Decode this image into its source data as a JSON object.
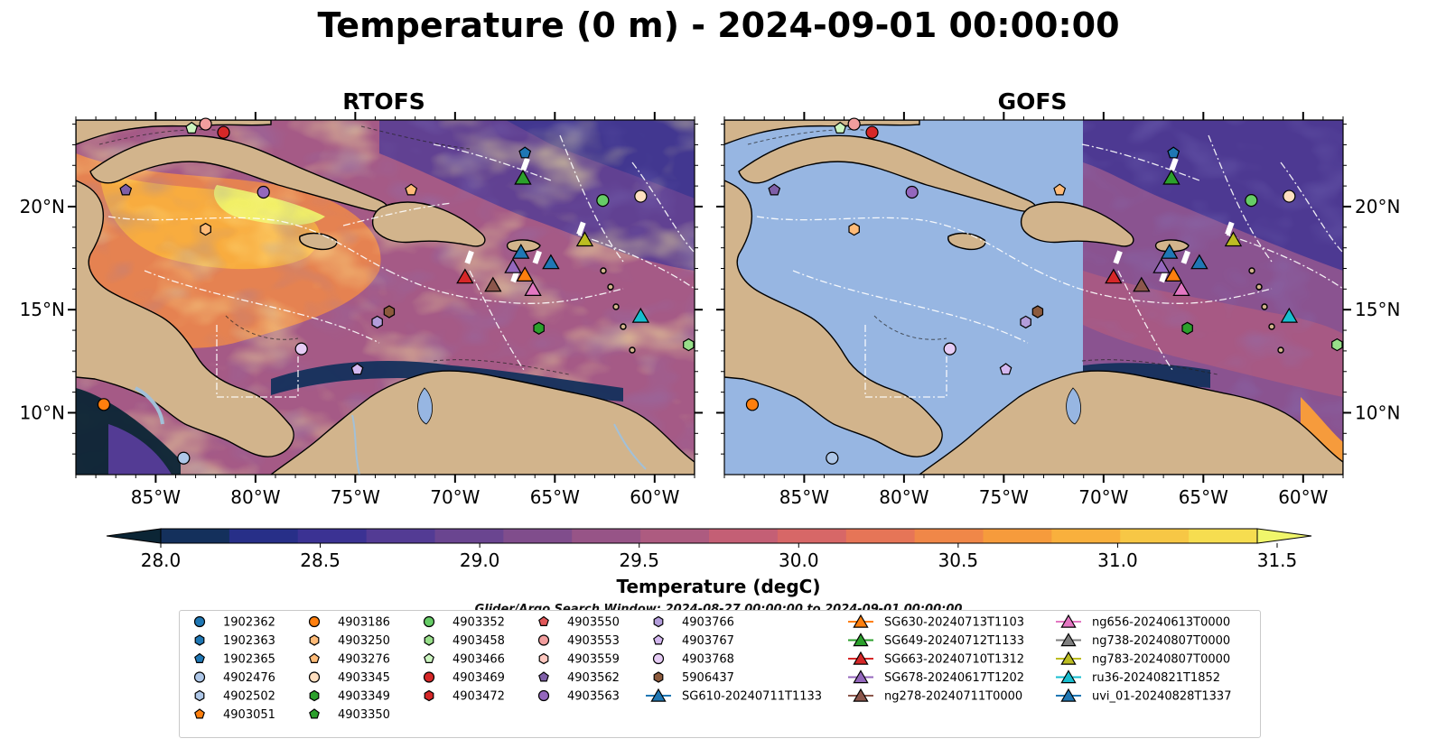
{
  "title": "Temperature (0 m) - 2024-09-01 00:00:00",
  "panels": [
    {
      "title": "RTOFS"
    },
    {
      "title": "GOFS"
    }
  ],
  "colorbar_label": "Temperature (degC)",
  "search_window": "Glider/Argo Search Window: 2024-08-27 00:00:00 to 2024-09-01 00:00:00",
  "chart_data": {
    "type": "heatmap",
    "title": "Temperature (0 m) - 2024-09-01 00:00:00",
    "x_ticks": [
      "85°W",
      "80°W",
      "75°W",
      "70°W",
      "65°W",
      "60°W"
    ],
    "y_ticks": [
      "20°N",
      "15°N",
      "10°N"
    ],
    "lon_range": [
      -89,
      -58
    ],
    "lat_range": [
      7,
      24.2
    ],
    "colorbar": {
      "label": "Temperature (degC)",
      "range": [
        28.0,
        31.5
      ],
      "ticks": [
        "28.0",
        "28.5",
        "29.0",
        "29.5",
        "30.0",
        "30.5",
        "31.0",
        "31.5"
      ],
      "colors": [
        "#0b2535",
        "#14305c",
        "#272f88",
        "#3b3293",
        "#533b94",
        "#6a4590",
        "#804d8c",
        "#975487",
        "#ad5b80",
        "#c45f75",
        "#d76767",
        "#e67557",
        "#f08748",
        "#f69b3c",
        "#f9b03d",
        "#f7c745",
        "#f6dd50",
        "#f0f66b"
      ]
    },
    "markers": [
      {
        "name": "1902362",
        "shape": "circle",
        "color": "#1f77b4"
      },
      {
        "name": "1902363",
        "shape": "hexagon",
        "color": "#1f77b4"
      },
      {
        "name": "1902365",
        "shape": "pentagon",
        "color": "#1f77b4",
        "lon": -66.5,
        "lat": 22.6
      },
      {
        "name": "4902476",
        "shape": "circle",
        "color": "#aec7e8",
        "lon": -83.6,
        "lat": 7.8
      },
      {
        "name": "4902502",
        "shape": "hexagon",
        "color": "#aec7e8"
      },
      {
        "name": "4903051",
        "shape": "pentagon",
        "color": "#ff7f0e"
      },
      {
        "name": "4903186",
        "shape": "circle",
        "color": "#ff7f0e",
        "lon": -87.6,
        "lat": 10.4
      },
      {
        "name": "4903250",
        "shape": "hexagon",
        "color": "#ffbb78",
        "lon": -82.5,
        "lat": 18.9
      },
      {
        "name": "4903276",
        "shape": "pentagon",
        "color": "#ffbb78",
        "lon": -72.2,
        "lat": 20.8
      },
      {
        "name": "4903345",
        "shape": "circle",
        "color": "#ffdfc0",
        "lon": -60.7,
        "lat": 20.5
      },
      {
        "name": "4903349",
        "shape": "hexagon",
        "color": "#2ca02c",
        "lon": -65.8,
        "lat": 14.1
      },
      {
        "name": "4903350",
        "shape": "pentagon",
        "color": "#2ca02c"
      },
      {
        "name": "4903352",
        "shape": "circle",
        "color": "#66cc66",
        "lon": -62.6,
        "lat": 20.3
      },
      {
        "name": "4903458",
        "shape": "hexagon",
        "color": "#98df8a",
        "lon": -58.3,
        "lat": 13.3
      },
      {
        "name": "4903466",
        "shape": "pentagon",
        "color": "#ccf5c0",
        "lon": -83.2,
        "lat": 23.8
      },
      {
        "name": "4903469",
        "shape": "circle",
        "color": "#d62728",
        "lon": -81.6,
        "lat": 23.6
      },
      {
        "name": "4903472",
        "shape": "hexagon",
        "color": "#d62728"
      },
      {
        "name": "4903550",
        "shape": "pentagon",
        "color": "#e15759"
      },
      {
        "name": "4903553",
        "shape": "circle",
        "color": "#f29e9e",
        "lon": -82.5,
        "lat": 24.0
      },
      {
        "name": "4903559",
        "shape": "hexagon",
        "color": "#ffc8c0"
      },
      {
        "name": "4903562",
        "shape": "pentagon",
        "color": "#7f5fa8",
        "lon": -86.5,
        "lat": 20.8
      },
      {
        "name": "4903563",
        "shape": "circle",
        "color": "#9467bd",
        "lon": -79.6,
        "lat": 20.7
      },
      {
        "name": "4903766",
        "shape": "hexagon",
        "color": "#b39ddb",
        "lon": -73.9,
        "lat": 14.4
      },
      {
        "name": "4903767",
        "shape": "pentagon",
        "color": "#d4b8f0",
        "lon": -74.9,
        "lat": 12.1
      },
      {
        "name": "4903768",
        "shape": "circle",
        "color": "#e6ccf5",
        "lon": -77.7,
        "lat": 13.1
      },
      {
        "name": "5906437",
        "shape": "hexagon",
        "color": "#8c5a3c",
        "lon": -73.3,
        "lat": 14.9
      },
      {
        "name": "SG610-20240711T1133",
        "shape": "triangle",
        "color": "#1f77b4",
        "line": true,
        "lon": -65.2,
        "lat": 17.3
      },
      {
        "name": "SG630-20240713T1103",
        "shape": "triangle",
        "color": "#ff7f0e",
        "line": true,
        "lon": -66.5,
        "lat": 16.7
      },
      {
        "name": "SG649-20240712T1133",
        "shape": "triangle",
        "color": "#2ca02c",
        "line": true,
        "lon": -66.6,
        "lat": 21.4
      },
      {
        "name": "SG663-20240710T1312",
        "shape": "triangle",
        "color": "#d62728",
        "line": true,
        "lon": -69.5,
        "lat": 16.6
      },
      {
        "name": "SG678-20240617T1202",
        "shape": "triangle",
        "color": "#9467bd",
        "line": true,
        "lon": -67.1,
        "lat": 17.1
      },
      {
        "name": "ng278-20240711T0000",
        "shape": "triangle",
        "color": "#8c564b",
        "line": true,
        "lon": -68.1,
        "lat": 16.2
      },
      {
        "name": "ng656-20240613T0000",
        "shape": "triangle",
        "color": "#e377c2",
        "line": true,
        "lon": -66.1,
        "lat": 16.0
      },
      {
        "name": "ng738-20240807T0000",
        "shape": "triangle",
        "color": "#7f7f7f",
        "line": true
      },
      {
        "name": "ng783-20240807T0000",
        "shape": "triangle",
        "color": "#bcbd22",
        "line": true,
        "lon": -63.5,
        "lat": 18.4
      },
      {
        "name": "ru36-20240821T1852",
        "shape": "triangle",
        "color": "#17becf",
        "line": true,
        "lon": -60.7,
        "lat": 14.7
      },
      {
        "name": "uvi_01-20240828T1337",
        "shape": "triangle",
        "color": "#1f77b4",
        "line": true,
        "lon": -66.7,
        "lat": 17.8
      }
    ]
  }
}
